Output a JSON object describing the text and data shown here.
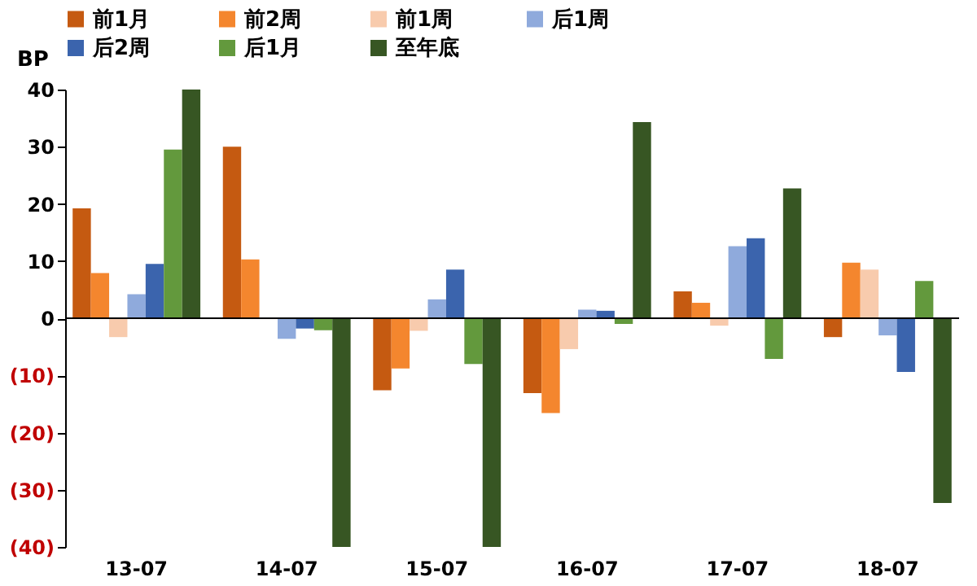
{
  "chart_data": {
    "type": "bar",
    "ylabel": "BP",
    "categories": [
      "13-07",
      "14-07",
      "15-07",
      "16-07",
      "17-07",
      "18-07"
    ],
    "series": [
      {
        "name": "前1月",
        "color": "#c55a11",
        "values": [
          19.2,
          30,
          -12.6,
          -13.1,
          4.7,
          -3.3
        ]
      },
      {
        "name": "前2周",
        "color": "#f4862e",
        "values": [
          7.9,
          10.3,
          -8.8,
          -16.6,
          2.7,
          9.7
        ]
      },
      {
        "name": "前1周",
        "color": "#f8cbad",
        "values": [
          -3.3,
          null,
          -2.2,
          -5.4,
          -1.3,
          8.5
        ]
      },
      {
        "name": "后1周",
        "color": "#8faadc",
        "values": [
          4.2,
          -3.6,
          3.3,
          1.5,
          12.6,
          -3.0
        ]
      },
      {
        "name": "后2周",
        "color": "#3b64ad",
        "values": [
          9.5,
          -1.8,
          8.5,
          1.3,
          14.0,
          -9.4
        ]
      },
      {
        "name": "后1月",
        "color": "#63993d",
        "values": [
          29.5,
          -2.1,
          -8.0,
          -1.0,
          -7.1,
          6.5
        ]
      },
      {
        "name": "至年底",
        "color": "#375623",
        "values": [
          40,
          -40,
          -40,
          34.3,
          22.7,
          -32.3
        ]
      }
    ],
    "ylim": [
      -40,
      40
    ],
    "yticks": [
      {
        "value": -40,
        "label": "(40)"
      },
      {
        "value": -30,
        "label": "(30)"
      },
      {
        "value": -20,
        "label": "(20)"
      },
      {
        "value": -10,
        "label": "(10)"
      },
      0,
      10,
      20,
      30,
      40
    ],
    "legend": "top"
  }
}
